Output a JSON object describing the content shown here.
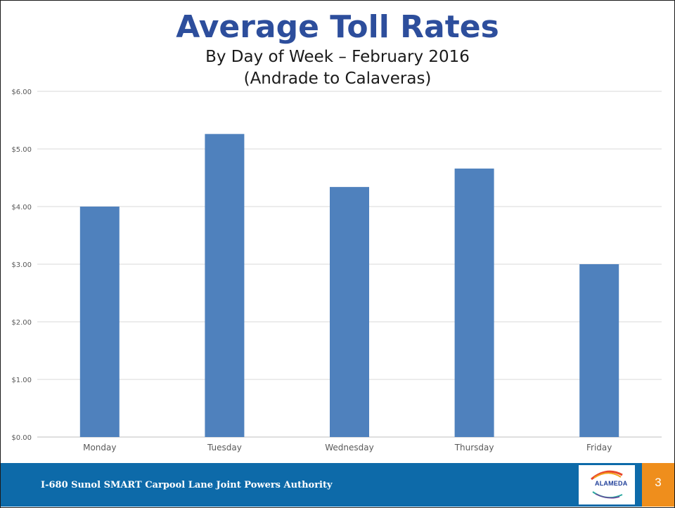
{
  "slide": {
    "title": "Average Toll Rates",
    "subtitle_line1": "By Day of Week – February 2016",
    "subtitle_line2": "(Andrade to Calaveras)",
    "footer_text": "I-680 Sunol SMART Carpool Lane Joint Powers Authority",
    "logo_text": "ALAMEDA",
    "logo_icon": "alameda-ctc-logo-icon",
    "page_number": "3",
    "colors": {
      "title": "#2d4e9c",
      "bar": "#4f81bd",
      "footer": "#0d6aa9",
      "page_box": "#ef8e1c"
    }
  },
  "chart_data": {
    "type": "bar",
    "title": "",
    "xlabel": "",
    "ylabel": "",
    "categories": [
      "Monday",
      "Tuesday",
      "Wednesday",
      "Thursday",
      "Friday"
    ],
    "values": [
      4.0,
      5.26,
      4.34,
      4.66,
      3.0
    ],
    "ylim": [
      0,
      6
    ],
    "yticks": [
      0,
      1,
      2,
      3,
      4,
      5,
      6
    ],
    "ytick_labels": [
      "$0.00",
      "$1.00",
      "$2.00",
      "$3.00",
      "$4.00",
      "$5.00",
      "$6.00"
    ],
    "grid": true,
    "legend": "none"
  }
}
